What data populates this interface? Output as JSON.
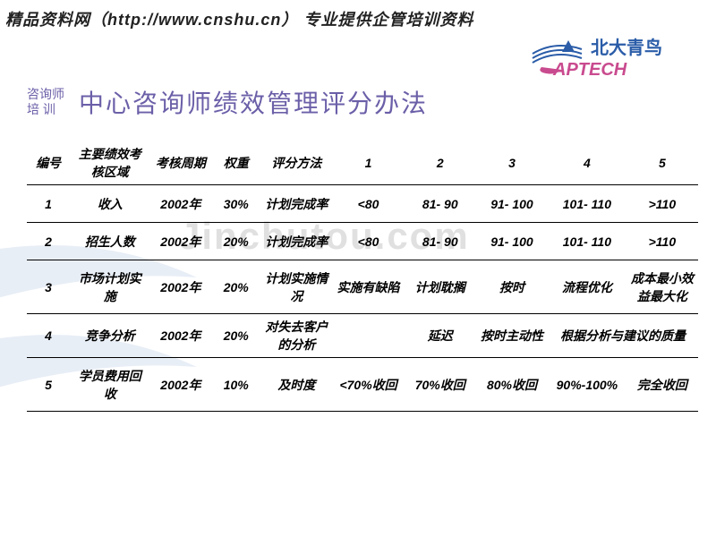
{
  "header": "精品资料网（http://www.cnshu.cn） 专业提供企管培训资料",
  "logo_text1": "北大青鸟",
  "logo_text2": "APTECH",
  "subtitle_left1": "咨询师",
  "subtitle_left2": "培  训",
  "main_title": "中心咨询师绩效管理评分办法",
  "watermark": "Jinchutou.com",
  "table": {
    "headers": [
      "编号",
      "主要绩效考核区域",
      "考核周期",
      "权重",
      "评分方法",
      "1",
      "2",
      "3",
      "4",
      "5"
    ],
    "rows": [
      [
        "1",
        "收入",
        "2002年",
        "30%",
        "计划完成率",
        "<80",
        "81- 90",
        "91- 100",
        "101- 110",
        ">110"
      ],
      [
        "2",
        "招生人数",
        "2002年",
        "20%",
        "计划完成率",
        "<80",
        "81- 90",
        "91- 100",
        "101- 110",
        ">110"
      ],
      [
        "3",
        "市场计划实施",
        "2002年",
        "20%",
        "计划实施情况",
        "实施有缺陷",
        "计划耽搁",
        "按时",
        "流程优化",
        "成本最小效益最大化"
      ],
      [
        "4",
        "竞争分析",
        "2002年",
        "20%",
        "对失去客户的分析",
        "",
        "延迟",
        "按时主动性",
        "根据分析与建议的质量",
        ""
      ],
      [
        "5",
        "学员费用回收",
        "2002年",
        "10%",
        "及时度",
        "<70%收回",
        "70%收回",
        "80%收回",
        "90%-100%",
        "完全收回"
      ]
    ],
    "colspans": {
      "3-8": 1,
      "3-9": 1
    }
  },
  "colors": {
    "title": "#6b5fa8",
    "logo_blue": "#2a5ca8",
    "logo_magenta": "#c94b8f"
  }
}
